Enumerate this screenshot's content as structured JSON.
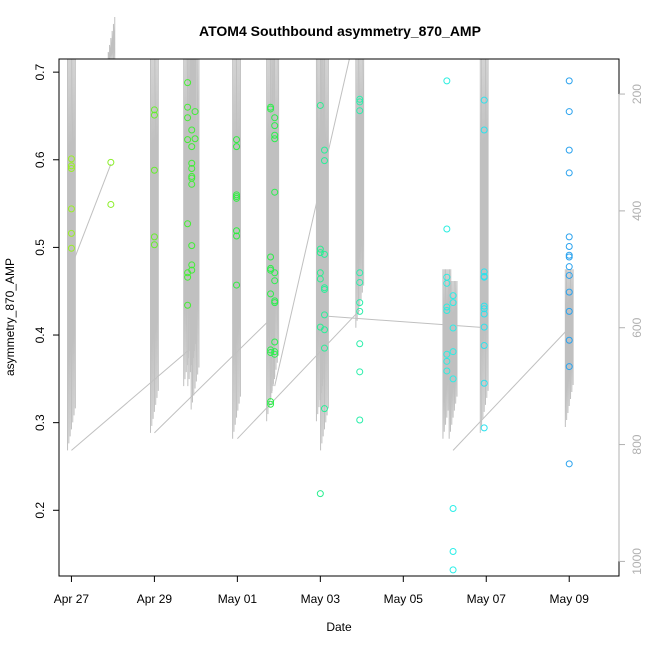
{
  "chart_data": {
    "type": "scatter",
    "title": "ATOM4 Southbound asymmetry_870_AMP",
    "xlabel": "Date",
    "ylabel": "asymmetry_870_AMP",
    "x_ticks": [
      "Apr 27",
      "Apr 29",
      "May 01",
      "May 03",
      "May 05",
      "May 07",
      "May 09"
    ],
    "x_tick_days": [
      0,
      2,
      4,
      6,
      8,
      10,
      12
    ],
    "xlim_days": [
      -0.3,
      13.2
    ],
    "y_ticks": [
      "0.2",
      "0.3",
      "0.4",
      "0.5",
      "0.6",
      "0.7"
    ],
    "y_tick_values": [
      0.2,
      0.3,
      0.4,
      0.5,
      0.6,
      0.7
    ],
    "ylim": [
      0.125,
      0.715
    ],
    "y2_ticks": [
      "200",
      "400",
      "600",
      "800",
      "1000"
    ],
    "y2_tick_values": [
      200,
      400,
      600,
      800,
      1000
    ],
    "y2lim": [
      1025,
      140
    ],
    "y2_inverted": true,
    "grid": false,
    "legend": "none",
    "points": [
      {
        "day": 0.0,
        "values": [
          0.601,
          0.593,
          0.59,
          0.544,
          0.516,
          0.499
        ],
        "color": "#9aef28"
      },
      {
        "day": 0.95,
        "values": [
          0.597,
          0.549
        ],
        "color": "#8cef2a"
      },
      {
        "day": 2.0,
        "values": [
          0.657,
          0.651,
          0.588,
          0.512,
          0.503
        ],
        "color": "#66ee2c"
      },
      {
        "day": 2.8,
        "values": [
          0.688,
          0.66,
          0.648,
          0.623,
          0.527,
          0.471,
          0.466,
          0.434
        ],
        "color": "#44ee33"
      },
      {
        "day": 2.9,
        "values": [
          0.634,
          0.615,
          0.596,
          0.59,
          0.581,
          0.579,
          0.572,
          0.502,
          0.48,
          0.474
        ],
        "color": "#3eee35"
      },
      {
        "day": 2.98,
        "values": [
          0.655,
          0.624
        ],
        "color": "#3eee35"
      },
      {
        "day": 3.98,
        "values": [
          0.623,
          0.615,
          0.56,
          0.558,
          0.556,
          0.519,
          0.513,
          0.457
        ],
        "color": "#30ee40"
      },
      {
        "day": 4.8,
        "values": [
          0.658,
          0.66,
          0.489,
          0.476,
          0.474,
          0.447,
          0.383,
          0.38,
          0.324,
          0.321
        ],
        "color": "#2cee4a"
      },
      {
        "day": 4.9,
        "values": [
          0.648,
          0.639,
          0.628,
          0.624,
          0.563,
          0.471,
          0.462,
          0.439,
          0.437,
          0.392,
          0.381,
          0.378
        ],
        "color": "#2cee4e"
      },
      {
        "day": 6.0,
        "values": [
          0.662,
          0.498,
          0.494,
          0.471,
          0.464,
          0.409,
          0.219
        ],
        "color": "#2aee90"
      },
      {
        "day": 6.1,
        "values": [
          0.611,
          0.599,
          0.492,
          0.454,
          0.452,
          0.423,
          0.406,
          0.385,
          0.316
        ],
        "color": "#2aee98"
      },
      {
        "day": 6.95,
        "values": [
          0.669,
          0.656,
          0.666,
          0.471,
          0.46,
          0.437,
          0.427,
          0.39,
          0.358,
          0.303
        ],
        "color": "#2aeeaa"
      },
      {
        "day": 9.05,
        "values": [
          0.69,
          0.521,
          0.466,
          0.459,
          0.432,
          0.428,
          0.378,
          0.37,
          0.359
        ],
        "color": "#2aeee0"
      },
      {
        "day": 9.2,
        "values": [
          0.445,
          0.437,
          0.408,
          0.381,
          0.35,
          0.202,
          0.153,
          0.132
        ],
        "color": "#2aeee8"
      },
      {
        "day": 9.95,
        "values": [
          0.668,
          0.634,
          0.472,
          0.467,
          0.466,
          0.433,
          0.43,
          0.424,
          0.409,
          0.388,
          0.345,
          0.294
        ],
        "color": "#2ae2ee"
      },
      {
        "day": 12.0,
        "values": [
          0.69,
          0.655,
          0.611,
          0.585,
          0.512,
          0.501,
          0.491,
          0.489,
          0.478,
          0.468,
          0.449,
          0.427,
          0.394,
          0.364,
          0.253
        ],
        "color": "#2aa2ee"
      }
    ],
    "pressure_traces": [
      {
        "day": 0.0,
        "p_min": 140,
        "p_max": 380,
        "bottom": 810
      },
      {
        "day": 0.95,
        "p_min": 140,
        "p_max": 320,
        "bottom": 140
      },
      {
        "day": 2.0,
        "p_min": 140,
        "p_max": 340,
        "bottom": 780
      },
      {
        "day": 2.8,
        "p_min": 140,
        "p_max": 340,
        "bottom": 700
      },
      {
        "day": 2.9,
        "p_min": 140,
        "p_max": 260,
        "bottom": 700
      },
      {
        "day": 2.98,
        "p_min": 140,
        "p_max": 260,
        "bottom": 740
      },
      {
        "day": 3.98,
        "p_min": 140,
        "p_max": 220,
        "bottom": 790
      },
      {
        "day": 4.8,
        "p_min": 140,
        "p_max": 220,
        "bottom": 760
      },
      {
        "day": 4.9,
        "p_min": 140,
        "p_max": 220,
        "bottom": 720
      },
      {
        "day": 6.0,
        "p_min": 140,
        "p_max": 240,
        "bottom": 760
      },
      {
        "day": 6.1,
        "p_min": 140,
        "p_max": 240,
        "bottom": 810
      },
      {
        "day": 6.95,
        "p_min": 140,
        "p_max": 200,
        "bottom": 600
      },
      {
        "day": 9.05,
        "p_min": 500,
        "p_max": 500,
        "bottom": 790
      },
      {
        "day": 9.2,
        "p_min": 520,
        "p_max": 520,
        "bottom": 790
      },
      {
        "day": 9.95,
        "p_min": 140,
        "p_max": 200,
        "bottom": 780
      },
      {
        "day": 12.0,
        "p_min": 500,
        "p_max": 500,
        "bottom": 770
      }
    ],
    "connector_segments": [
      {
        "from": [
          0.0,
          495
        ],
        "to": [
          0.95,
          320
        ]
      },
      {
        "from": [
          0.0,
          810
        ],
        "to": [
          2.8,
          640
        ]
      },
      {
        "from": [
          2.0,
          780
        ],
        "to": [
          4.8,
          585
        ]
      },
      {
        "from": [
          4.0,
          790
        ],
        "to": [
          6.95,
          570
        ]
      },
      {
        "from": [
          6.1,
          580
        ],
        "to": [
          10.0,
          600
        ]
      },
      {
        "from": [
          9.2,
          810
        ],
        "to": [
          12.0,
          600
        ]
      },
      {
        "from": [
          4.9,
          700
        ],
        "to": [
          6.7,
          140
        ]
      }
    ]
  }
}
